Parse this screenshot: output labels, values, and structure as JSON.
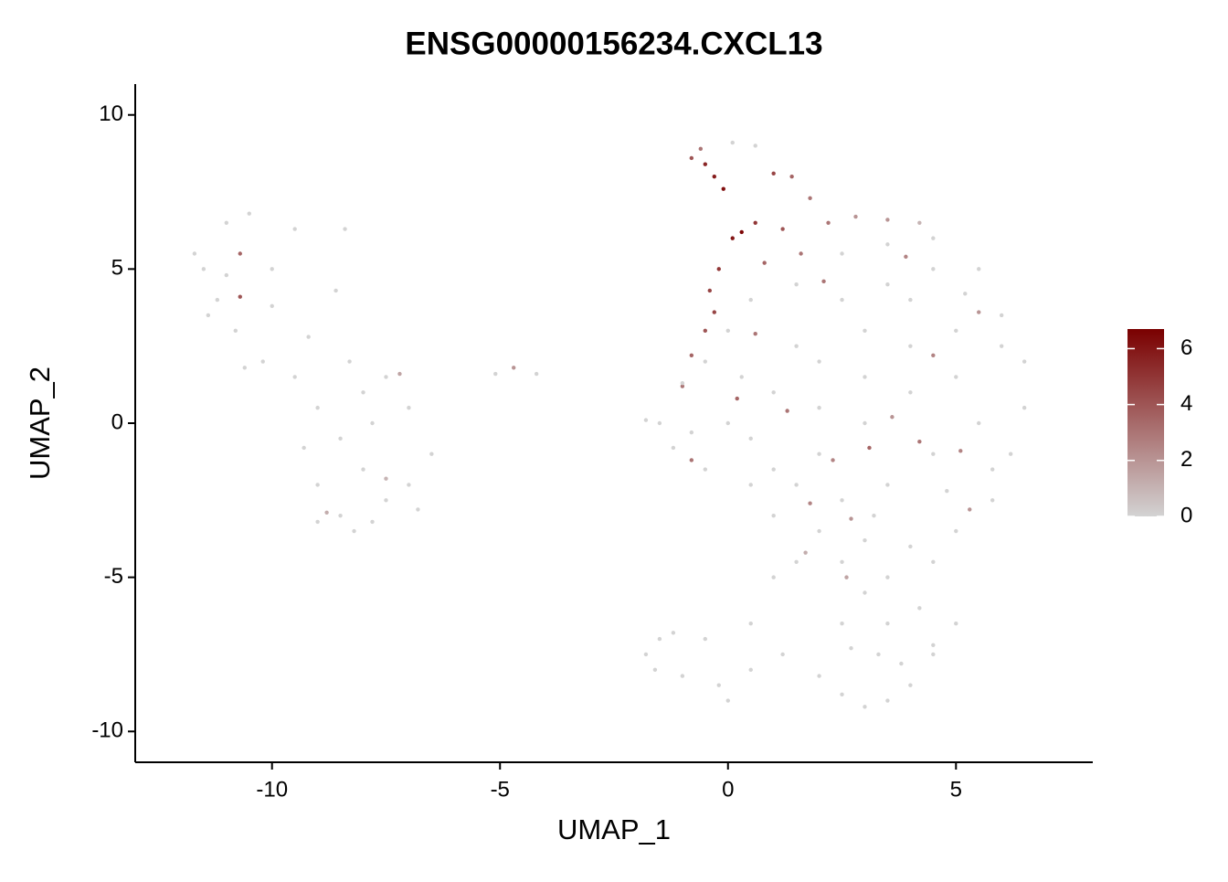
{
  "chart_data": {
    "type": "scatter",
    "title": "ENSG00000156234.CXCL13",
    "x_label": "UMAP_1",
    "y_label": "UMAP_2",
    "xlim": [
      -13,
      8
    ],
    "ylim": [
      -11,
      11
    ],
    "xticks": [
      -10,
      -5,
      0,
      5
    ],
    "yticks": [
      -10,
      -5,
      0,
      5,
      10
    ],
    "clim": [
      0,
      6.7
    ],
    "cticks": [
      0,
      2,
      4,
      6
    ],
    "low_color": "#d3d3d3",
    "high_color": "#7a0000",
    "x": [
      -11.5,
      -11,
      -10.5,
      -11.2,
      -10.8,
      -10.2,
      -9.5,
      -9,
      -8.5,
      -8,
      -7.5,
      -8.5,
      -7,
      -7,
      -7.5,
      -8,
      -9,
      -8.2,
      -6.5,
      -10,
      -9.5,
      -11.7,
      -10.7,
      -10.7,
      -7.2,
      -7.5,
      -8.8,
      -11,
      -10,
      -9.2,
      -8.3,
      -7.8,
      -9.3,
      -6.8,
      -7.8,
      -9,
      -10.6,
      -11.4,
      -8.6,
      -8.4,
      -5.1,
      -4.7,
      -4.2,
      -0.8,
      -0.6,
      -0.5,
      -0.3,
      -0.1,
      0.3,
      0.6,
      0.1,
      -0.2,
      -0.4,
      -0.3,
      -0.5,
      -0.8,
      -1,
      0.1,
      0.6,
      1,
      1.4,
      1.8,
      1.2,
      0.8,
      1.6,
      2.2,
      2.8,
      3.5,
      4.2,
      -1.5,
      -1.8,
      -1.2,
      -1,
      -0.5,
      0,
      0.5,
      1.5,
      2.5,
      3.5,
      4.5,
      5.5,
      6,
      6.5,
      6.5,
      6.2,
      5.8,
      5,
      4,
      3,
      2,
      1,
      0.5,
      -0.5,
      0,
      1,
      2,
      3,
      4,
      5,
      4,
      3,
      2,
      1,
      2,
      3,
      4,
      5,
      5.5,
      4.5,
      3.5,
      2.5,
      1.5,
      0.5,
      1.5,
      2.5,
      3.5,
      4.5,
      5.2,
      6,
      0.3,
      -0.8,
      3.2,
      4.8,
      5.8,
      -0.8,
      0.2,
      1.3,
      2.3,
      3.1,
      4.2,
      5.1,
      3.6,
      1.8,
      2.7,
      4.5,
      5.5,
      3.9,
      2.1,
      5.3,
      0.6,
      1.5,
      2.5,
      3.5,
      4.5,
      3,
      2.5,
      3.5,
      4.2,
      1,
      0.5,
      -0.5,
      -1.2,
      -1.8,
      -1.6,
      -1,
      -0.2,
      0.5,
      1.2,
      2,
      2.5,
      3,
      3.5,
      4,
      3.8,
      4.5,
      3.3,
      2.7,
      -1.5,
      4.5,
      5,
      0,
      2.6,
      1.7
    ],
    "y": [
      5,
      6.5,
      6.8,
      4,
      3,
      2,
      1.5,
      0.5,
      -0.5,
      -1.5,
      -2.5,
      -3,
      -2,
      0.5,
      1.5,
      1,
      -2,
      -3.5,
      -1,
      5,
      6.3,
      5.5,
      5.5,
      4.1,
      1.6,
      -1.8,
      -2.9,
      4.8,
      3.8,
      2.8,
      2,
      0,
      -0.8,
      -2.8,
      -3.2,
      -3.2,
      1.8,
      3.5,
      4.3,
      6.3,
      1.6,
      1.8,
      1.6,
      8.6,
      8.9,
      8.4,
      8,
      7.6,
      6.2,
      6.5,
      6,
      5,
      4.3,
      3.6,
      3,
      2.2,
      1.2,
      9.1,
      9,
      8.1,
      8,
      7.3,
      6.3,
      5.2,
      5.5,
      6.5,
      6.7,
      6.6,
      6.5,
      0,
      0.1,
      -0.8,
      1.3,
      2,
      3,
      4,
      4.5,
      5.5,
      5.8,
      6,
      5,
      3.5,
      2,
      0.5,
      -1,
      -2.5,
      -3.5,
      -4,
      -3.8,
      -3.5,
      -3,
      -2,
      -1.5,
      0,
      1,
      2,
      3,
      4,
      3,
      1,
      0,
      -1,
      -1.5,
      0.5,
      1.5,
      2.5,
      1.5,
      0,
      -1,
      -2,
      -2.5,
      -2,
      -0.5,
      2.5,
      4,
      4.5,
      5,
      4.2,
      2.5,
      1.5,
      -0.3,
      -3,
      -2.2,
      -1.5,
      -1.2,
      0.8,
      0.4,
      -1.2,
      -0.8,
      -0.6,
      -0.9,
      0.2,
      -2.6,
      -3.1,
      2.2,
      3.6,
      5.4,
      4.6,
      -2.8,
      2.9,
      -4.5,
      -4.5,
      -5,
      -4.5,
      -5.5,
      -6.5,
      -6.5,
      -6,
      -5,
      -6.5,
      -7,
      -6.8,
      -7.5,
      -8,
      -8.2,
      -8.5,
      -8,
      -7.5,
      -8.2,
      -8.8,
      -9.2,
      -9,
      -8.5,
      -7.8,
      -7.5,
      -7.5,
      -7.3,
      -7,
      -7.2,
      -6.5,
      -9,
      -5,
      -4.2
    ],
    "expression": [
      0,
      0,
      0,
      0,
      0,
      0,
      0,
      0,
      0,
      0,
      0,
      0,
      0,
      0,
      0,
      0,
      0,
      0,
      0,
      0,
      0,
      0,
      3.5,
      4,
      1.5,
      1,
      1.2,
      0,
      0,
      0,
      0,
      0,
      0,
      0,
      0,
      0,
      0,
      0,
      0,
      0,
      0,
      2,
      0,
      4,
      3,
      5.5,
      5.8,
      6.2,
      6.5,
      5,
      6,
      5,
      4.5,
      4.5,
      4,
      3.5,
      3,
      0,
      0,
      4.5,
      3.5,
      3,
      4,
      3.5,
      3,
      3,
      2,
      2,
      1,
      0,
      0,
      0,
      0,
      0,
      0,
      0,
      0,
      0,
      0,
      0,
      0,
      0,
      0,
      0,
      0,
      0,
      0,
      0,
      0,
      0,
      0,
      0,
      0,
      0,
      0,
      0,
      0,
      0,
      0,
      0,
      0,
      0,
      0,
      0,
      0,
      0,
      0,
      0,
      0,
      0,
      0,
      0,
      0,
      0,
      0,
      0,
      0,
      0,
      0,
      0,
      0,
      0,
      0,
      0,
      3,
      3.5,
      3,
      2.5,
      3.5,
      3,
      2.5,
      2,
      2.5,
      2,
      2.5,
      2,
      2.5,
      3,
      2,
      3,
      0,
      0,
      0,
      0,
      0,
      0,
      0,
      0,
      0,
      0,
      0,
      0,
      0,
      0,
      0,
      0,
      0,
      0,
      0,
      0,
      0,
      0,
      0,
      0,
      0,
      0,
      0,
      0,
      0,
      0,
      0,
      1.5,
      1.2
    ]
  }
}
